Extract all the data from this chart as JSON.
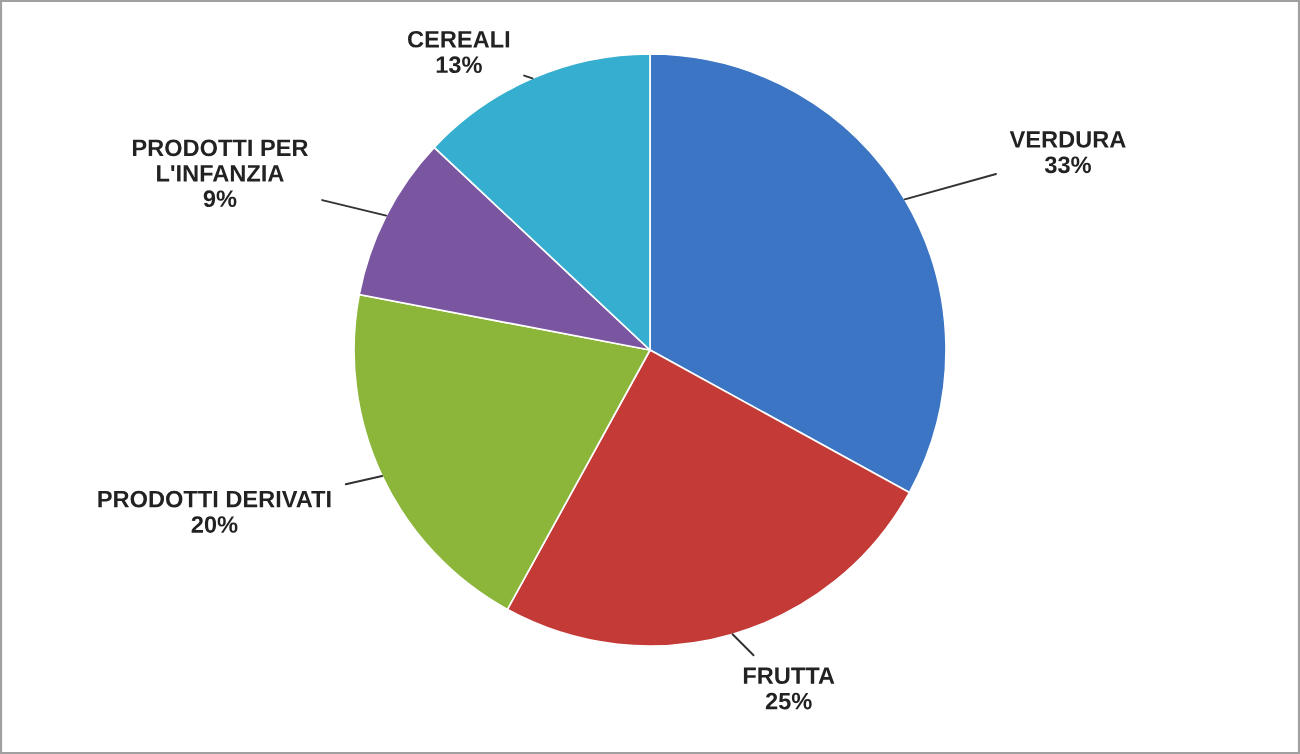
{
  "chart_data": {
    "type": "pie",
    "categories": [
      "VERDURA",
      "FRUTTA",
      "PRODOTTI DERIVATI",
      "PRODOTTI PER\nL'INFANZIA",
      "CEREALI"
    ],
    "values": [
      33,
      25,
      20,
      9,
      13
    ],
    "value_labels": [
      "33%",
      "25%",
      "20%",
      "9%",
      "13%"
    ],
    "colors": [
      "#3b75c3",
      "#c43a36",
      "#8bb63a",
      "#7a56a0",
      "#35aecf"
    ],
    "legend": false
  }
}
